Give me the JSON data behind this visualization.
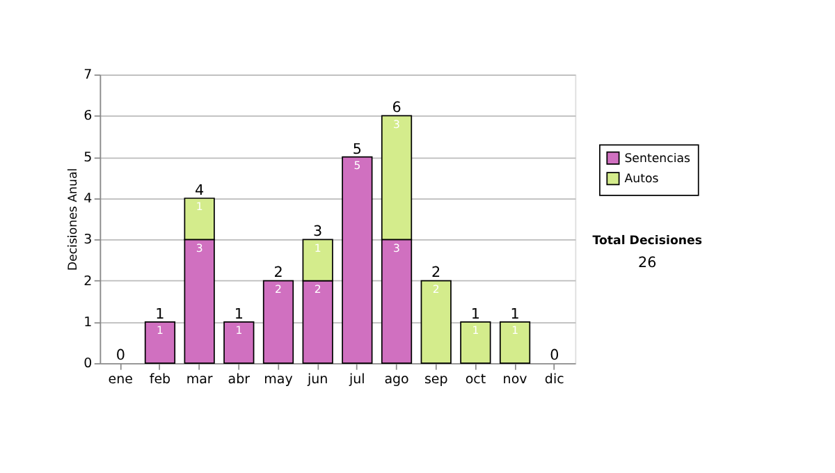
{
  "chart_data": {
    "type": "bar",
    "stacked": true,
    "ylabel": "Decisiones Anual",
    "categories": [
      "ene",
      "feb",
      "mar",
      "abr",
      "may",
      "jun",
      "jul",
      "ago",
      "sep",
      "oct",
      "nov",
      "dic"
    ],
    "series": [
      {
        "name": "Sentencias",
        "color": "#d070c0",
        "values": [
          0,
          1,
          3,
          1,
          2,
          2,
          5,
          3,
          0,
          0,
          0,
          0
        ],
        "value_labels": [
          null,
          "1",
          "3",
          "1",
          "2",
          "2",
          "5",
          "3",
          null,
          null,
          null,
          null
        ]
      },
      {
        "name": "Autos",
        "color": "#d4ec8c",
        "values": [
          0,
          0,
          1,
          0,
          0,
          1,
          0,
          3,
          2,
          1,
          1,
          0
        ],
        "value_labels": [
          null,
          null,
          "1",
          null,
          null,
          "1",
          null,
          "3",
          "2",
          "1",
          "1",
          null
        ]
      }
    ],
    "totals": [
      "0",
      "1",
      "4",
      "1",
      "2",
      "3",
      "5",
      "6",
      "2",
      "1",
      "1",
      "0"
    ],
    "ylim": [
      0,
      7
    ],
    "yticks": [
      0,
      1,
      2,
      3,
      4,
      5,
      6,
      7
    ],
    "grid": "y",
    "legend": "right",
    "annotations": [
      "Total Decisiones",
      "26"
    ]
  }
}
